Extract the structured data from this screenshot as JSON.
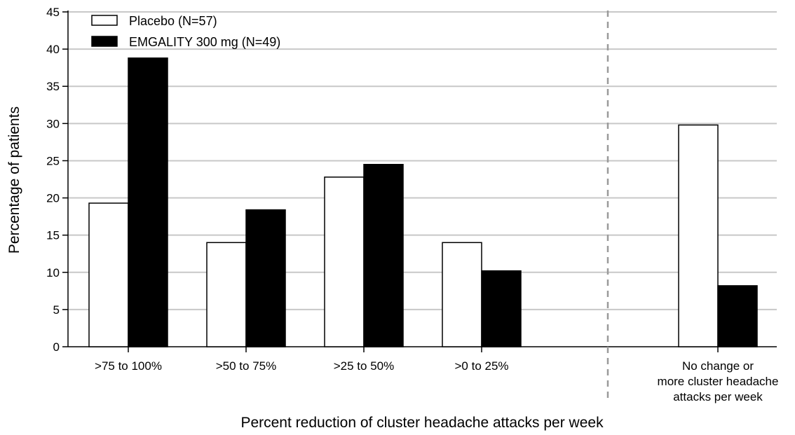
{
  "chart_data": {
    "type": "bar",
    "xlabel": "Percent reduction of cluster headache attacks per week",
    "ylabel": "Percentage of patients",
    "ylim": [
      0,
      45
    ],
    "yticks": [
      0,
      5,
      10,
      15,
      20,
      25,
      30,
      35,
      40,
      45
    ],
    "grid": true,
    "legend_position": "top-left",
    "categories": [
      [
        ">75 to 100%"
      ],
      [
        ">50 to 75%"
      ],
      [
        ">25 to 50%"
      ],
      [
        ">0 to 25%"
      ],
      [
        "No change or",
        "more cluster headache",
        "attacks per week"
      ]
    ],
    "separator_before_category": 4,
    "series": [
      {
        "name": "Placebo (N=57)",
        "fill": "#ffffff",
        "values": [
          19.3,
          14.0,
          22.8,
          14.0,
          29.8
        ]
      },
      {
        "name": "EMGALITY 300 mg (N=49)",
        "fill": "#000000",
        "values": [
          38.8,
          18.4,
          24.5,
          10.2,
          8.2
        ]
      }
    ],
    "colors": {
      "gridline": "#c8c8c8",
      "separator": "#9a9a9a"
    }
  }
}
